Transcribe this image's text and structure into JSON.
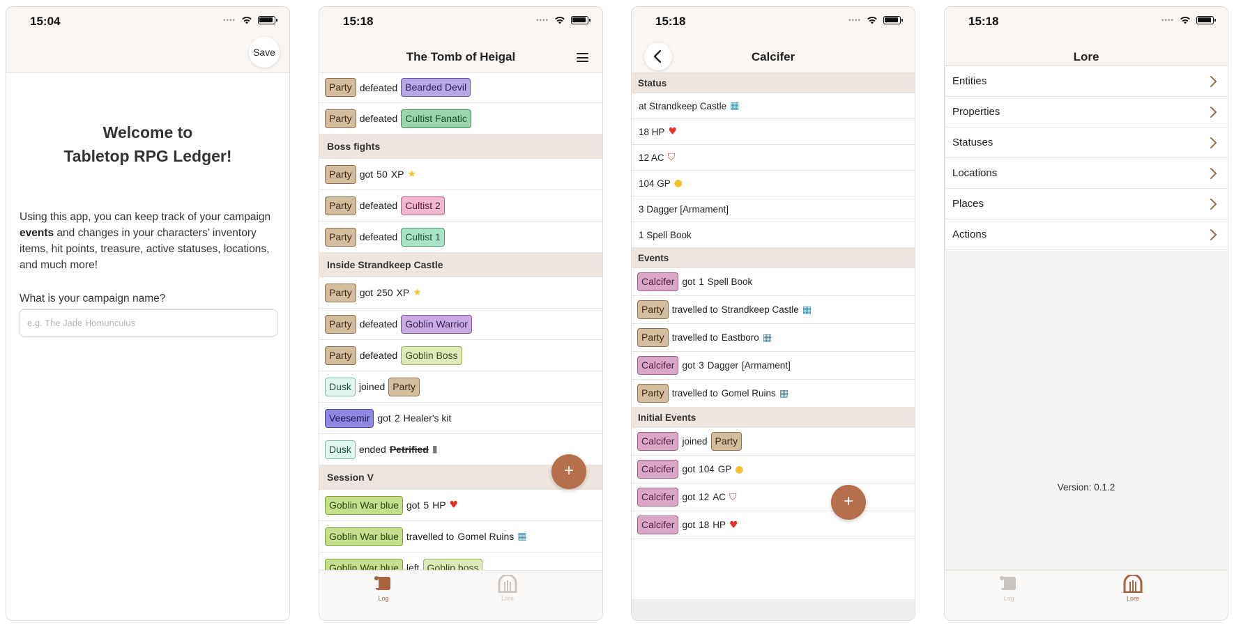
{
  "phone1": {
    "time": "15:04",
    "save_label": "Save",
    "welcome_line1": "Welcome to",
    "welcome_line2": "Tabletop RPG Ledger!",
    "body_part1": "Using this app, you can keep track of your campaign ",
    "body_bold": "events",
    "body_part2": " and changes in your characters’ inventory items, hit points, treasure, active statuses, locations, and much more!",
    "question": "What is your campaign name?",
    "input_value": "",
    "input_placeholder": "e.g. The Jade Homunculus"
  },
  "phone2": {
    "time": "15:18",
    "title": "The Tomb of Heigal",
    "rows_top": [
      {
        "a": "Party",
        "verb": "defeated",
        "b": "Bearded Devil"
      },
      {
        "a": "Party",
        "verb": "defeated",
        "b": "Cultist Fanatic"
      }
    ],
    "section_boss": "Boss fights",
    "boss_xp": {
      "a": "Party",
      "verb": "got",
      "qty": "50",
      "item": "XP"
    },
    "boss_rows": [
      {
        "a": "Party",
        "verb": "defeated",
        "b": "Cultist 2"
      },
      {
        "a": "Party",
        "verb": "defeated",
        "b": "Cultist 1"
      }
    ],
    "section_castle": "Inside Strandkeep Castle",
    "castle_xp": {
      "a": "Party",
      "verb": "got",
      "qty": "250",
      "item": "XP"
    },
    "castle_rows": [
      {
        "a": "Party",
        "verb": "defeated",
        "b": "Goblin Warrior"
      },
      {
        "a": "Party",
        "verb": "defeated",
        "b": "Goblin Boss"
      },
      {
        "a": "Dusk",
        "verb": "joined",
        "b": "Party"
      }
    ],
    "veesemir": {
      "a": "Veesemir",
      "verb": "got",
      "qty": "2",
      "item": "Healer's kit"
    },
    "dusk_ended": {
      "a": "Dusk",
      "verb": "ended",
      "status": "Petrified"
    },
    "section_session": "Session V",
    "session_hp": {
      "a": "Goblin War blue",
      "verb": "got",
      "qty": "5",
      "item": "HP"
    },
    "session_travel": {
      "a": "Goblin War blue",
      "verb": "travelled to",
      "place": "Gomel Ruins"
    },
    "session_left": {
      "a": "Goblin War blue",
      "verb": "left",
      "b": "Goblin boss"
    },
    "fab": "+",
    "tab_log": "Log",
    "tab_lore": "Lore"
  },
  "phone3": {
    "time": "15:18",
    "title": "Calcifer",
    "section_status": "Status",
    "status": {
      "location": "at Strandkeep Castle",
      "hp": "18 HP",
      "ac": "12 AC",
      "gp": "104 GP",
      "dagger": "3 Dagger [Armament]",
      "book": "1 Spell Book"
    },
    "section_events": "Events",
    "events": {
      "e1": {
        "a": "Calcifer",
        "verb": "got",
        "qty": "1",
        "item": "Spell Book"
      },
      "e2": {
        "a": "Party",
        "verb": "travelled to",
        "place": "Strandkeep Castle"
      },
      "e3": {
        "a": "Party",
        "verb": "travelled to",
        "place": "Eastboro"
      },
      "e4": {
        "a": "Calcifer",
        "verb": "got",
        "qty": "3",
        "item": "Dagger",
        "tag": "[Armament]"
      },
      "e5": {
        "a": "Party",
        "verb": "travelled to",
        "place": "Gomel Ruins"
      }
    },
    "section_initial": "Initial Events",
    "initial": {
      "i1": {
        "a": "Calcifer",
        "verb": "joined",
        "b": "Party"
      },
      "i2": {
        "a": "Calcifer",
        "verb": "got",
        "qty": "104",
        "item": "GP"
      },
      "i3": {
        "a": "Calcifer",
        "verb": "got",
        "qty": "12",
        "item": "AC"
      },
      "i4": {
        "a": "Calcifer",
        "verb": "got",
        "qty": "18",
        "item": "HP"
      }
    },
    "fab": "+"
  },
  "phone4": {
    "time": "15:18",
    "title": "Lore",
    "items": [
      "Entities",
      "Properties",
      "Statuses",
      "Locations",
      "Places",
      "Actions"
    ],
    "version": "Version: 0.1.2",
    "tab_log": "Log",
    "tab_lore": "Lore"
  },
  "colors": {
    "accent": "#b56f4b",
    "section_bg": "#ede5de",
    "navbar_bg": "#f9f6f3"
  }
}
